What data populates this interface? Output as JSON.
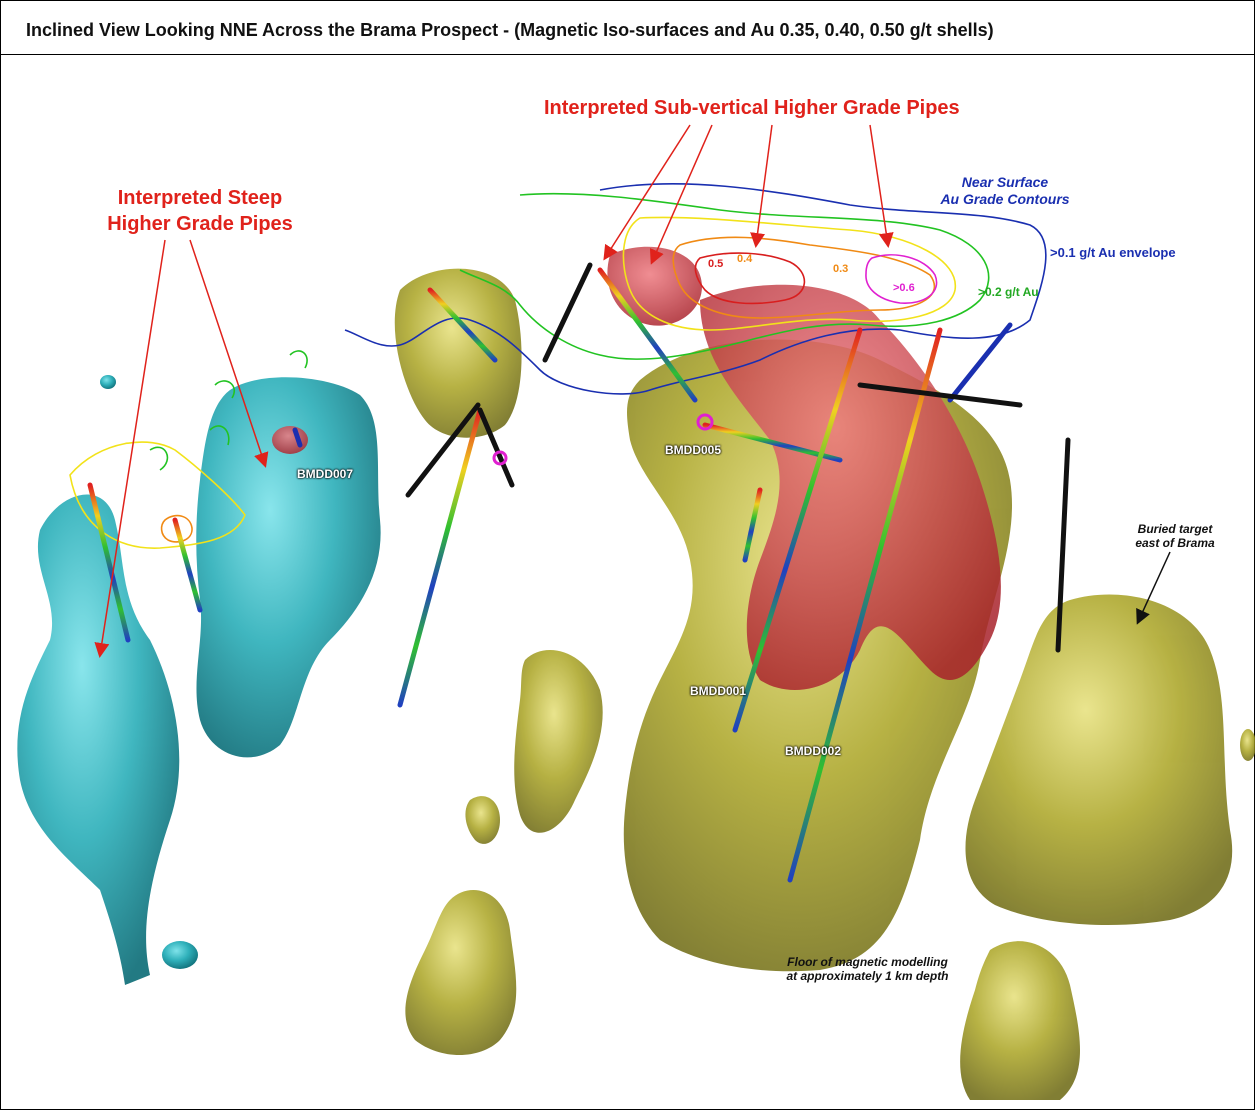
{
  "title": "Inclined View Looking NNE Across the Brama Prospect - (Magnetic Iso-surfaces and Au 0.35, 0.40, 0.50 g/t shells)",
  "labels": {
    "subvertical_pipes": "Interpreted Sub-vertical Higher Grade Pipes",
    "steep_pipes_line1": "Interpreted Steep",
    "steep_pipes_line2": "Higher Grade Pipes",
    "near_surface_line1": "Near Surface",
    "near_surface_line2": "Au Grade Contours",
    "envelope_01": ">0.1 g/t Au envelope",
    "envelope_02": ">0.2 g/t Au",
    "contour_06": ">0.6",
    "contour_05": "0.5",
    "contour_04": "0.4",
    "contour_03": "0.3",
    "buried_line1": "Buried target",
    "buried_line2": "east of Brama",
    "floor_line1": "Floor of magnetic modelling",
    "floor_line2": "at approximately 1 km depth"
  },
  "drillholes": [
    "BMDD007",
    "BMDD005",
    "BMDD001",
    "BMDD002"
  ],
  "colors": {
    "teal_body": "#2fb8c2",
    "olive_body": "#b6b02a",
    "red_shell": "#c8323a",
    "annotation_red": "#e0221b",
    "annotation_blue": "#1a2fb0",
    "contour_green": "#22c322",
    "contour_yellow": "#f2e21a",
    "contour_orange": "#f08a14",
    "contour_magenta": "#e020d0"
  }
}
